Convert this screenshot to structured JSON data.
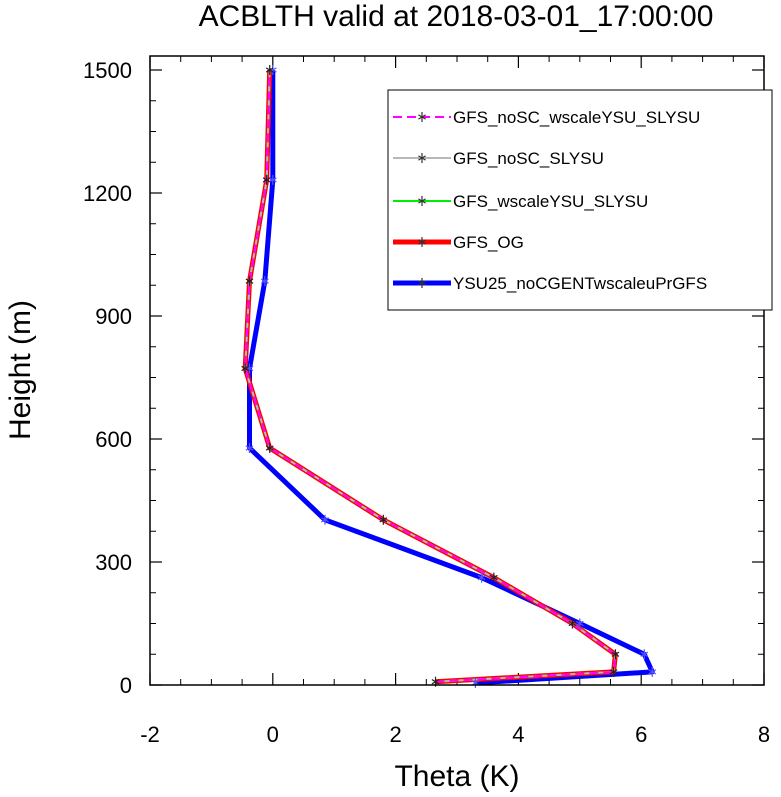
{
  "chart_data": {
    "type": "line",
    "title": "ACBLTH valid at 2018-03-01_17:00:00",
    "xlabel": "Theta (K)",
    "ylabel": "Height (m)",
    "xlim": [
      -2,
      8
    ],
    "ylim": [
      0,
      1500
    ],
    "x_ticks": [
      "-2",
      "0",
      "2",
      "4",
      "6",
      "8"
    ],
    "y_ticks": [
      "0",
      "300",
      "600",
      "900",
      "1200",
      "1500"
    ],
    "legend_position": "top-right",
    "series": [
      {
        "name": "GFS_noSC_wscaleYSU_SLYSU",
        "color": "#ff00ff",
        "style": "dashed",
        "marker": "asterisk",
        "points": [
          [
            2.65,
            8
          ],
          [
            5.55,
            32
          ],
          [
            5.58,
            75
          ],
          [
            4.88,
            150
          ],
          [
            3.6,
            262
          ],
          [
            1.8,
            403
          ],
          [
            -0.05,
            578
          ],
          [
            -0.45,
            772
          ],
          [
            -0.38,
            985
          ],
          [
            -0.1,
            1232
          ],
          [
            -0.05,
            1500
          ]
        ]
      },
      {
        "name": "GFS_noSC_SLYSU",
        "color": "#b8b8b8",
        "style": "solid",
        "marker": "asterisk",
        "points": [
          [
            2.65,
            8
          ],
          [
            5.55,
            32
          ],
          [
            5.58,
            75
          ],
          [
            4.88,
            150
          ],
          [
            3.6,
            262
          ],
          [
            1.8,
            403
          ],
          [
            -0.05,
            578
          ],
          [
            -0.45,
            772
          ],
          [
            -0.38,
            985
          ],
          [
            -0.1,
            1232
          ],
          [
            -0.05,
            1500
          ]
        ]
      },
      {
        "name": "GFS_wscaleYSU_SLYSU",
        "color": "#00ee00",
        "style": "solid",
        "marker": "asterisk",
        "points": [
          [
            2.65,
            8
          ],
          [
            5.55,
            32
          ],
          [
            5.58,
            75
          ],
          [
            4.88,
            150
          ],
          [
            3.6,
            262
          ],
          [
            1.8,
            403
          ],
          [
            -0.05,
            578
          ],
          [
            -0.45,
            772
          ],
          [
            -0.38,
            985
          ],
          [
            -0.1,
            1232
          ],
          [
            -0.05,
            1500
          ]
        ]
      },
      {
        "name": "GFS_OG",
        "color": "#ff0000",
        "style": "solid",
        "marker": "asterisk",
        "points": [
          [
            2.65,
            8
          ],
          [
            5.55,
            32
          ],
          [
            5.58,
            75
          ],
          [
            4.88,
            150
          ],
          [
            3.6,
            262
          ],
          [
            1.8,
            403
          ],
          [
            -0.05,
            578
          ],
          [
            -0.45,
            772
          ],
          [
            -0.38,
            985
          ],
          [
            -0.1,
            1232
          ],
          [
            -0.05,
            1500
          ]
        ]
      },
      {
        "name": "YSU25_noCGENTwscaleuPrGFS",
        "color": "#0000ff",
        "style": "solid",
        "marker": "asterisk",
        "points": [
          [
            3.3,
            5
          ],
          [
            6.18,
            32
          ],
          [
            6.05,
            75
          ],
          [
            5.0,
            150
          ],
          [
            3.4,
            262
          ],
          [
            0.85,
            403
          ],
          [
            -0.38,
            578
          ],
          [
            -0.38,
            772
          ],
          [
            -0.13,
            985
          ],
          [
            0.0,
            1232
          ],
          [
            0.0,
            1500
          ]
        ]
      }
    ]
  }
}
